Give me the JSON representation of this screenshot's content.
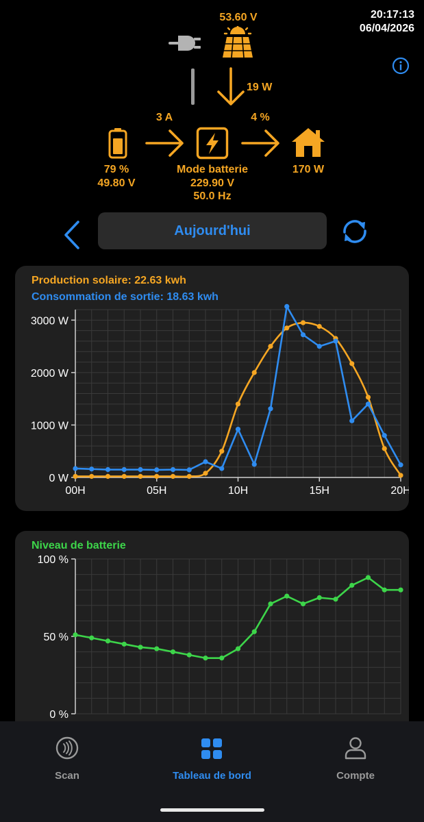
{
  "header": {
    "time": "20:17:13",
    "date": "06/04/2026"
  },
  "flow": {
    "solar_voltage": "53.60 V",
    "solar_power": "19 W",
    "battery_current": "3 A",
    "output_percent": "4 %",
    "battery_level": "79 %",
    "battery_voltage": "49.80 V",
    "mode": "Mode batterie",
    "output_voltage": "229.90 V",
    "output_frequency": "50.0 Hz",
    "load_power": "170 W"
  },
  "date_selector": {
    "label": "Aujourd'hui"
  },
  "colors": {
    "solar": "#f5a623",
    "consumption": "#2f8cf0",
    "battery": "#3dd54a"
  },
  "chart_data": [
    {
      "type": "line",
      "title_series": [
        {
          "label": "Production solaire: 22.63 kwh"
        },
        {
          "label": "Consommation de sortie: 18.63 kwh"
        }
      ],
      "x": [
        0,
        1,
        2,
        3,
        4,
        5,
        6,
        7,
        8,
        9,
        10,
        11,
        12,
        13,
        14,
        15,
        16,
        17,
        18,
        19,
        20
      ],
      "xticks": [
        0,
        5,
        10,
        15,
        20
      ],
      "xtick_labels": [
        "00H",
        "05H",
        "10H",
        "15H",
        "20H"
      ],
      "yticks": [
        0,
        1000,
        2000,
        3000
      ],
      "ytick_labels": [
        "0 W",
        "1000 W",
        "2000 W",
        "3000 W"
      ],
      "ylim": [
        0,
        3200
      ],
      "xlim": [
        0,
        20
      ],
      "series": [
        {
          "name": "Production solaire",
          "values": [
            20,
            20,
            20,
            20,
            20,
            20,
            20,
            20,
            80,
            500,
            1400,
            2000,
            2500,
            2850,
            2950,
            2880,
            2650,
            2170,
            1530,
            550,
            40
          ]
        },
        {
          "name": "Consommation de sortie",
          "values": [
            170,
            160,
            150,
            150,
            150,
            145,
            150,
            145,
            300,
            170,
            920,
            250,
            1310,
            3260,
            2720,
            2500,
            2600,
            1080,
            1400,
            800,
            240
          ]
        }
      ]
    },
    {
      "type": "line",
      "title": "Niveau de batterie",
      "x": [
        0,
        1,
        2,
        3,
        4,
        5,
        6,
        7,
        8,
        9,
        10,
        11,
        12,
        13,
        14,
        15,
        16,
        17,
        18,
        19,
        20
      ],
      "yticks": [
        0,
        50,
        100
      ],
      "ytick_labels": [
        "0 %",
        "50 %",
        "100 %"
      ],
      "ylim": [
        0,
        100
      ],
      "xlim": [
        0,
        20
      ],
      "series": [
        {
          "name": "Niveau de batterie",
          "values": [
            51,
            49,
            47,
            45,
            43,
            42,
            40,
            38,
            36,
            36,
            42,
            53,
            71,
            76,
            71,
            75,
            74,
            83,
            88,
            80,
            80
          ]
        }
      ]
    }
  ],
  "nav": {
    "scan": "Scan",
    "dashboard": "Tableau de bord",
    "account": "Compte"
  }
}
